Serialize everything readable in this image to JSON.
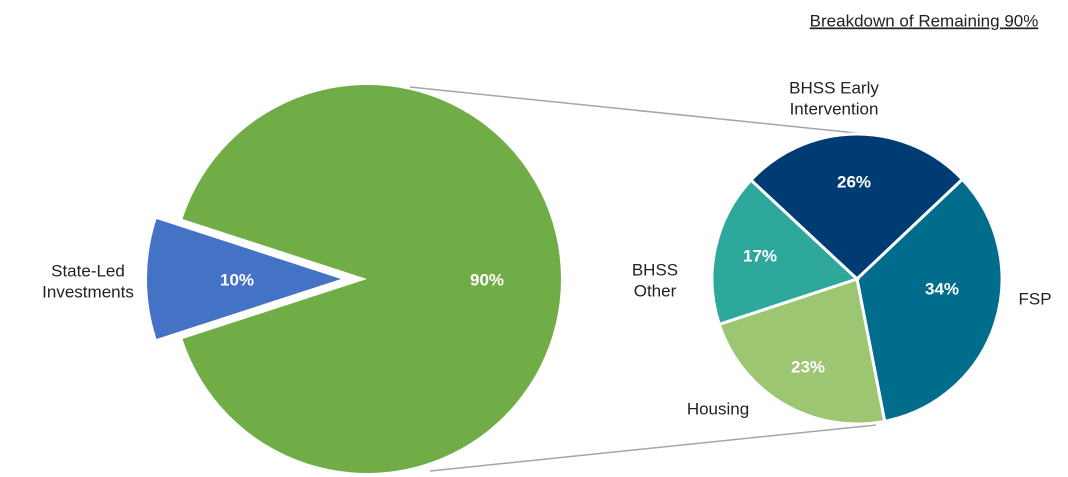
{
  "chart_data": [
    {
      "type": "pie",
      "categories": [
        "State-Led Investments",
        null
      ],
      "values": [
        10,
        90
      ],
      "value_labels": [
        "10%",
        "90%"
      ],
      "colors": [
        "#4472c4",
        "#70ad47"
      ]
    },
    {
      "type": "pie",
      "title": "Breakdown of Remaining 90%",
      "categories": [
        "BHSS Early Intervention",
        "FSP",
        "Housing",
        "BHSS Other"
      ],
      "values": [
        26,
        34,
        23,
        17
      ],
      "value_labels": [
        "26%",
        "34%",
        "23%",
        "17%"
      ],
      "colors": [
        "#003c74",
        "#006d8d",
        "#9dc672",
        "#2ea89b"
      ]
    }
  ]
}
